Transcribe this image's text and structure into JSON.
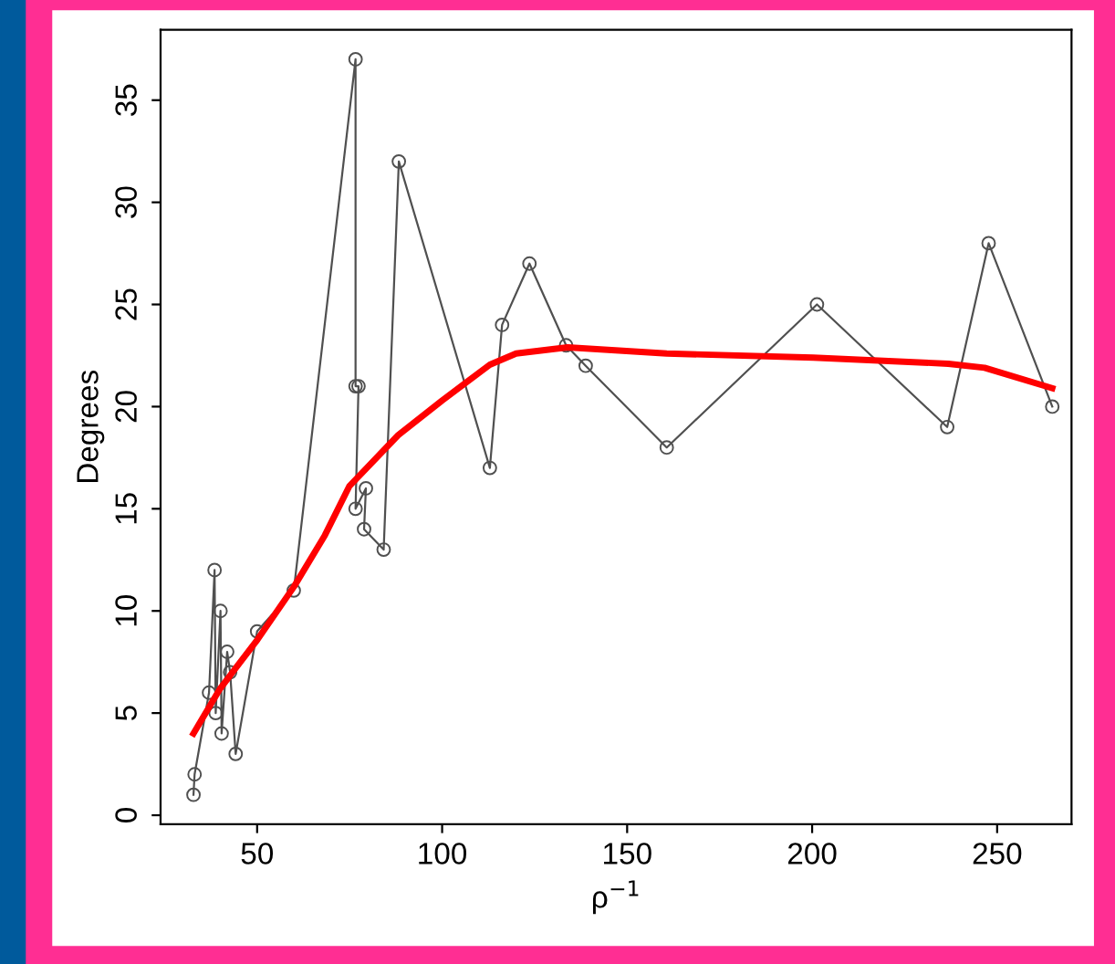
{
  "chart_data": {
    "type": "line",
    "xlabel": "ρ$^{−1}$",
    "ylabel": "Degrees",
    "xlim": [
      23.9,
      270.1
    ],
    "ylim": [
      -0.44,
      38.44
    ],
    "xticks": [
      50,
      100,
      150,
      200,
      250
    ],
    "yticks": [
      0,
      5,
      10,
      15,
      20,
      25,
      30,
      35
    ],
    "grid": false,
    "legend": false,
    "series": [
      {
        "color": "#505050",
        "marker": "circle",
        "line_style": "solid",
        "x": [
          32.8,
          33.1,
          37,
          38.5,
          38.8,
          40.1,
          40.4,
          41.9,
          42.7,
          44.2,
          50,
          59.9,
          76.6,
          76.6,
          77.4,
          76.6,
          79.4,
          78.9,
          84.2,
          88.3,
          112.9,
          116.2,
          123.6,
          133.5,
          138.8,
          160.7,
          201.3,
          236.5,
          247.7,
          264.9
        ],
        "values": [
          1,
          2,
          6,
          12,
          5,
          10,
          4,
          8,
          7,
          3,
          9,
          11,
          37,
          21,
          21,
          15,
          16,
          14,
          13,
          32,
          17,
          24,
          27,
          23,
          22,
          18,
          25,
          19,
          28,
          20
        ]
      },
      {
        "color": "#ff0000",
        "marker": "none",
        "line_style": "solid",
        "x": [
          32.8,
          40,
          50.1,
          60,
          68.3,
          74.9,
          88.1,
          100,
          112.9,
          120,
          133.9,
          160.7,
          200.3,
          236.8,
          246.6,
          264.9
        ],
        "values": [
          4.0,
          6.2,
          8.6,
          11.2,
          13.7,
          16.1,
          18.6,
          20.3,
          22.05,
          22.6,
          22.9,
          22.6,
          22.4,
          22.1,
          21.9,
          20.9
        ]
      }
    ]
  }
}
